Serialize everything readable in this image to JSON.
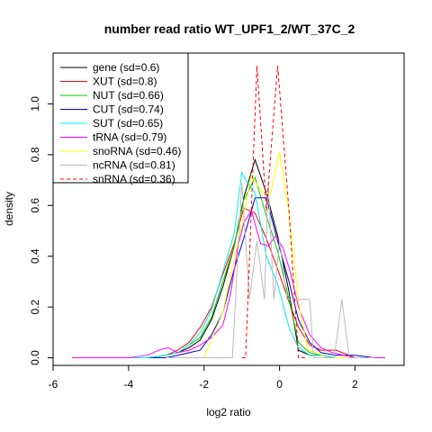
{
  "chart_data": {
    "type": "line",
    "title": "number read ratio WT_UPF1_2/WT_37C_2",
    "xlabel": "log2 ratio",
    "ylabel": "density",
    "xlim": [
      -6,
      3.3
    ],
    "ylim": [
      -0.03,
      1.2
    ],
    "xticks": [
      -6,
      -4,
      -2,
      0,
      2
    ],
    "yticks": [
      0.0,
      0.2,
      0.4,
      0.6,
      0.8,
      1.0
    ],
    "grid": false,
    "legend_position": "top-left",
    "series": [
      {
        "name": "gene (sd=0.6)",
        "color": "#000000",
        "dash": "solid",
        "x": [
          -5.5,
          -4.5,
          -4.0,
          -3.5,
          -3.0,
          -2.7,
          -2.4,
          -2.1,
          -1.8,
          -1.5,
          -1.2,
          -0.95,
          -0.65,
          -0.35,
          -0.05,
          0.25,
          0.5,
          0.8,
          1.1,
          1.5,
          2.0,
          2.6,
          2.8
        ],
        "y": [
          0.0,
          0.0,
          0.0,
          0.0,
          0.01,
          0.02,
          0.04,
          0.07,
          0.15,
          0.28,
          0.44,
          0.63,
          0.78,
          0.65,
          0.48,
          0.26,
          0.03,
          0.01,
          0.01,
          0.0,
          0.0,
          0.0,
          0.0
        ]
      },
      {
        "name": "XUT (sd=0.8)",
        "color": "#ff0000",
        "dash": "solid",
        "x": [
          -5.5,
          -4.5,
          -4.0,
          -3.5,
          -3.0,
          -2.7,
          -2.4,
          -2.1,
          -1.8,
          -1.5,
          -1.2,
          -0.95,
          -0.65,
          -0.35,
          -0.05,
          0.25,
          0.5,
          0.8,
          1.1,
          1.5,
          2.0,
          2.5,
          2.8
        ],
        "y": [
          0.0,
          0.0,
          0.0,
          0.0,
          0.01,
          0.03,
          0.06,
          0.12,
          0.2,
          0.33,
          0.45,
          0.59,
          0.57,
          0.47,
          0.35,
          0.22,
          0.12,
          0.05,
          0.03,
          0.03,
          0.0,
          0.0,
          0.0
        ]
      },
      {
        "name": "NUT (sd=0.66)",
        "color": "#00cc00",
        "dash": "solid",
        "x": [
          -5.5,
          -4.5,
          -4.0,
          -3.5,
          -3.0,
          -2.7,
          -2.4,
          -2.1,
          -1.8,
          -1.5,
          -1.2,
          -0.95,
          -0.65,
          -0.35,
          -0.05,
          0.25,
          0.5,
          0.8,
          1.1,
          1.5,
          2.0,
          2.6,
          2.8
        ],
        "y": [
          0.0,
          0.0,
          0.0,
          0.0,
          0.01,
          0.02,
          0.05,
          0.08,
          0.16,
          0.3,
          0.44,
          0.62,
          0.71,
          0.56,
          0.42,
          0.23,
          0.06,
          0.02,
          0.01,
          0.0,
          0.0,
          0.0,
          0.0
        ]
      },
      {
        "name": "CUT (sd=0.74)",
        "color": "#0000cc",
        "dash": "solid",
        "x": [
          -5.5,
          -4.5,
          -4.0,
          -3.5,
          -3.0,
          -2.7,
          -2.4,
          -2.1,
          -1.8,
          -1.5,
          -1.2,
          -0.95,
          -0.65,
          -0.35,
          -0.05,
          0.25,
          0.5,
          0.8,
          1.1,
          1.5,
          2.0,
          2.5,
          2.8
        ],
        "y": [
          0.0,
          0.0,
          0.0,
          0.0,
          0.0,
          0.01,
          0.02,
          0.03,
          0.09,
          0.18,
          0.35,
          0.47,
          0.63,
          0.63,
          0.46,
          0.3,
          0.15,
          0.06,
          0.02,
          0.01,
          0.01,
          0.0,
          0.0
        ]
      },
      {
        "name": "SUT (sd=0.65)",
        "color": "#00eeee",
        "dash": "solid",
        "x": [
          -5.5,
          -4.5,
          -4.0,
          -3.5,
          -3.0,
          -2.7,
          -2.4,
          -2.1,
          -1.8,
          -1.5,
          -1.2,
          -1.0,
          -0.9,
          -0.65,
          -0.35,
          -0.05,
          0.25,
          0.5,
          0.8,
          1.1,
          1.5,
          2.0,
          2.8
        ],
        "y": [
          0.0,
          0.0,
          0.0,
          0.0,
          0.01,
          0.02,
          0.05,
          0.1,
          0.19,
          0.34,
          0.49,
          0.73,
          0.7,
          0.65,
          0.4,
          0.29,
          0.12,
          0.04,
          0.01,
          0.01,
          0.0,
          0.0,
          0.0
        ]
      },
      {
        "name": "tRNA (sd=0.79)",
        "color": "#ff00ff",
        "dash": "solid",
        "x": [
          -5.5,
          -4.5,
          -4.0,
          -3.5,
          -3.2,
          -2.95,
          -2.7,
          -2.4,
          -2.1,
          -1.8,
          -1.5,
          -1.3,
          -1.1,
          -0.95,
          -0.75,
          -0.5,
          -0.3,
          -0.1,
          0.1,
          0.3,
          0.5,
          0.8,
          1.1,
          1.4,
          1.7,
          2.0,
          2.5,
          2.8
        ],
        "y": [
          0.0,
          0.0,
          0.0,
          0.01,
          0.03,
          0.04,
          0.02,
          0.03,
          0.05,
          0.08,
          0.13,
          0.25,
          0.44,
          0.53,
          0.58,
          0.45,
          0.44,
          0.48,
          0.43,
          0.33,
          0.2,
          0.09,
          0.04,
          0.02,
          0.01,
          0.0,
          0.0,
          0.0
        ]
      },
      {
        "name": "snoRNA (sd=0.46)",
        "color": "#ffff00",
        "dash": "solid",
        "x": [
          -3.0,
          -2.5,
          -2.0,
          -1.75,
          -1.5,
          -1.25,
          -1.0,
          -0.75,
          -0.5,
          -0.25,
          0.0,
          0.25,
          0.5,
          0.75,
          1.0,
          1.25,
          1.5,
          2.0
        ],
        "y": [
          0.0,
          0.0,
          0.0,
          0.09,
          0.18,
          0.36,
          0.52,
          0.72,
          0.66,
          0.64,
          0.81,
          0.57,
          0.22,
          0.03,
          0.02,
          0.0,
          0.0,
          0.0
        ]
      },
      {
        "name": "ncRNA (sd=0.81)",
        "color": "#bbbbbb",
        "dash": "solid",
        "x": [
          -3.0,
          -2.0,
          -1.5,
          -1.25,
          -1.0,
          -0.8,
          -0.6,
          -0.4,
          -0.3,
          -0.15,
          0.0,
          0.2,
          0.4,
          0.6,
          0.8,
          0.9,
          1.1,
          1.3,
          1.45,
          1.65,
          1.85,
          2.0,
          2.5
        ],
        "y": [
          0.0,
          0.0,
          0.0,
          0.0,
          0.69,
          0.23,
          0.46,
          0.23,
          0.69,
          0.23,
          0.46,
          0.23,
          0.23,
          0.23,
          0.23,
          0.0,
          0.0,
          0.0,
          0.0,
          0.23,
          0.0,
          0.0,
          0.0
        ]
      },
      {
        "name": "snRNA (sd=0.36)",
        "color": "#ff0000",
        "dash": "dashed",
        "x": [
          -1.0,
          -0.9,
          -0.6,
          -0.35,
          -0.05,
          0.25,
          0.5,
          0.7
        ],
        "y": [
          0.0,
          0.0,
          1.15,
          0.58,
          1.15,
          0.58,
          0.0,
          0.0
        ]
      }
    ]
  }
}
